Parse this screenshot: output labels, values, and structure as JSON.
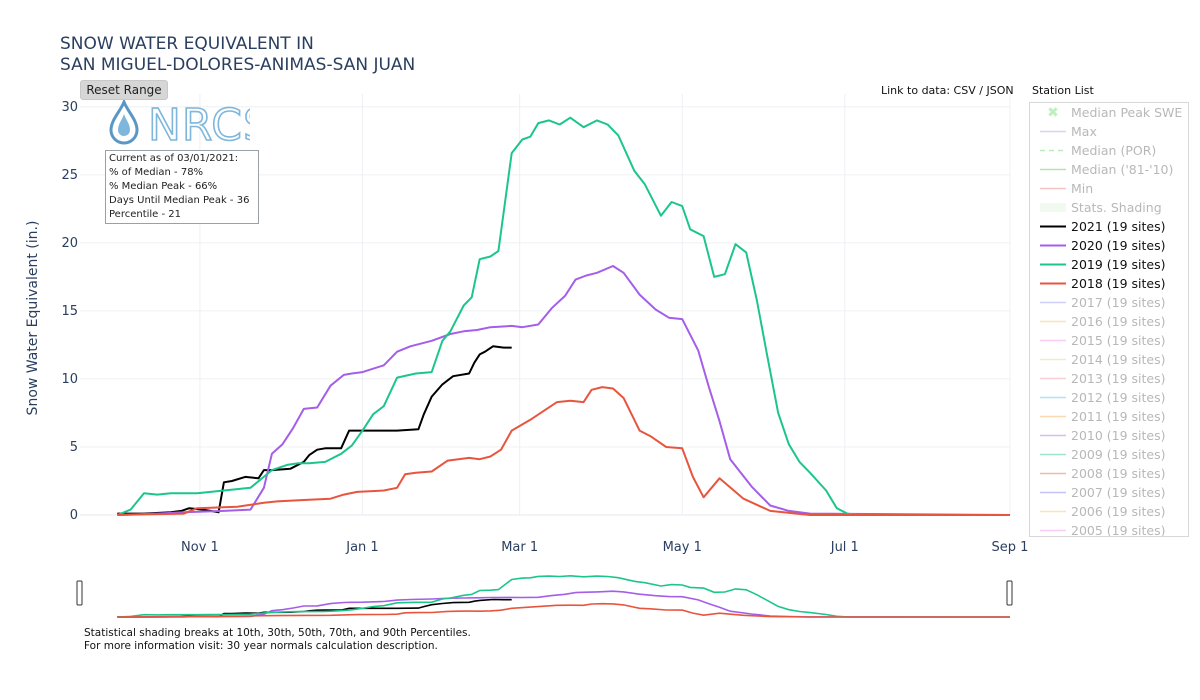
{
  "title_line1": "SNOW WATER EQUIVALENT IN",
  "title_line2": "SAN MIGUEL-DOLORES-ANIMAS-SAN JUAN",
  "reset_range_label": "Reset Range",
  "links": {
    "prefix": "Link to data:",
    "csv": "CSV",
    "sep": "/",
    "json": "JSON"
  },
  "station_list_label": "Station List",
  "logo_text": "NRCS",
  "info_box": {
    "line1": "Current as of 03/01/2021:",
    "line2": "% of Median - 78%",
    "line3": "% Median Peak - 66%",
    "line4": "Days Until Median Peak - 36",
    "line5": "Percentile - 21"
  },
  "footnote": {
    "line1": "Statistical shading breaks at 10th, 30th, 50th, 70th, and 90th Percentiles.",
    "line2_prefix": "For more information visit:",
    "line2_link": "30 year normals calculation description."
  },
  "legend": [
    {
      "label": "Median Peak SWE",
      "color": "#66dd66",
      "style": "marker",
      "active": false
    },
    {
      "label": "Max",
      "color": "#a98ee8",
      "style": "line",
      "active": false
    },
    {
      "label": "Median (POR)",
      "color": "#5ccf5c",
      "style": "dash",
      "active": false
    },
    {
      "label": "Median ('81-'10)",
      "color": "#4fbf4f",
      "style": "line",
      "active": false
    },
    {
      "label": "Min",
      "color": "#e57373",
      "style": "line",
      "active": false
    },
    {
      "label": "Stats. Shading",
      "color": "#dff2df",
      "style": "fill",
      "active": false
    },
    {
      "label": "2021 (19 sites)",
      "color": "#000000",
      "style": "line",
      "active": true
    },
    {
      "label": "2020 (19 sites)",
      "color": "#a45ee8",
      "style": "line",
      "active": true
    },
    {
      "label": "2019 (19 sites)",
      "color": "#1cc68b",
      "style": "line",
      "active": true
    },
    {
      "label": "2018 (19 sites)",
      "color": "#e8553e",
      "style": "line",
      "active": true
    },
    {
      "label": "2017 (19 sites)",
      "color": "#8c8ef0",
      "style": "line",
      "active": false
    },
    {
      "label": "2016 (19 sites)",
      "color": "#f5c04a",
      "style": "line",
      "active": false
    },
    {
      "label": "2015 (19 sites)",
      "color": "#f08ce8",
      "style": "line",
      "active": false
    },
    {
      "label": "2014 (19 sites)",
      "color": "#b8e08a",
      "style": "line",
      "active": false
    },
    {
      "label": "2013 (19 sites)",
      "color": "#f08e9c",
      "style": "line",
      "active": false
    },
    {
      "label": "2012 (19 sites)",
      "color": "#39c6f0",
      "style": "line",
      "active": false
    },
    {
      "label": "2011 (19 sites)",
      "color": "#f5a64a",
      "style": "line",
      "active": false
    },
    {
      "label": "2010 (19 sites)",
      "color": "#a45ee8",
      "style": "line",
      "active": false
    },
    {
      "label": "2009 (19 sites)",
      "color": "#1cc68b",
      "style": "line",
      "active": false
    },
    {
      "label": "2008 (19 sites)",
      "color": "#e8553e",
      "style": "line",
      "active": false
    },
    {
      "label": "2007 (19 sites)",
      "color": "#6f6ff0",
      "style": "line",
      "active": false
    },
    {
      "label": "2006 (19 sites)",
      "color": "#f5c04a",
      "style": "line",
      "active": false
    },
    {
      "label": "2005 (19 sites)",
      "color": "#f08ce8",
      "style": "line",
      "active": false
    }
  ],
  "chart_data": {
    "type": "line",
    "title": "SNOW WATER EQUIVALENT IN SAN MIGUEL-DOLORES-ANIMAS-SAN JUAN",
    "xlabel": "",
    "ylabel": "Snow Water Equivalent (in.)",
    "x_unit": "days since Oct 1",
    "xlim": [
      -14,
      335
    ],
    "ylim": [
      0,
      30.5
    ],
    "x_ticks": [
      {
        "value": 31,
        "label": "Nov  1"
      },
      {
        "value": 92,
        "label": "Jan  1"
      },
      {
        "value": 151,
        "label": "Mar  1"
      },
      {
        "value": 212,
        "label": "May  1"
      },
      {
        "value": 273,
        "label": "Jul  1"
      },
      {
        "value": 335,
        "label": "Sep  1"
      }
    ],
    "y_ticks": [
      0,
      5,
      10,
      15,
      20,
      25,
      30
    ],
    "grid": true,
    "legend_position": "right",
    "series": [
      {
        "name": "2021 (19 sites)",
        "color": "#000000",
        "width": 2,
        "x": [
          0,
          10,
          20,
          24,
          27,
          32,
          35,
          38,
          40,
          43,
          48,
          53,
          55,
          58,
          65,
          70,
          72,
          75,
          78,
          84,
          87,
          90,
          95,
          105,
          113,
          115,
          118,
          122,
          126,
          132,
          134,
          136,
          138,
          141,
          145,
          148
        ],
        "y": [
          0.1,
          0.1,
          0.2,
          0.3,
          0.5,
          0.4,
          0.3,
          0.2,
          2.4,
          2.5,
          2.8,
          2.7,
          3.3,
          3.3,
          3.4,
          3.9,
          4.4,
          4.8,
          4.9,
          4.9,
          6.2,
          6.2,
          6.2,
          6.2,
          6.3,
          7.4,
          8.7,
          9.6,
          10.2,
          10.4,
          11.2,
          11.8,
          12.0,
          12.4,
          12.3,
          12.3
        ]
      },
      {
        "name": "2020 (19 sites)",
        "color": "#a45ee8",
        "width": 2,
        "x": [
          0,
          15,
          25,
          40,
          50,
          55,
          58,
          62,
          66,
          70,
          75,
          80,
          85,
          88,
          92,
          100,
          105,
          110,
          118,
          125,
          130,
          135,
          140,
          148,
          152,
          158,
          163,
          168,
          172,
          176,
          180,
          186,
          190,
          196,
          202,
          207,
          212,
          218,
          222,
          226,
          230,
          238,
          245,
          252,
          260,
          335
        ],
        "y": [
          0.0,
          0.1,
          0.2,
          0.3,
          0.4,
          2.0,
          4.5,
          5.2,
          6.4,
          7.8,
          7.9,
          9.5,
          10.3,
          10.4,
          10.5,
          11.0,
          12.0,
          12.4,
          12.8,
          13.3,
          13.5,
          13.6,
          13.8,
          13.9,
          13.8,
          14.0,
          15.2,
          16.1,
          17.3,
          17.6,
          17.8,
          18.3,
          17.8,
          16.2,
          15.1,
          14.5,
          14.4,
          12.1,
          9.4,
          6.9,
          4.1,
          2.1,
          0.7,
          0.3,
          0.1,
          0.0
        ]
      },
      {
        "name": "2019 (19 sites)",
        "color": "#1cc68b",
        "width": 2,
        "x": [
          0,
          5,
          10,
          15,
          20,
          25,
          30,
          35,
          40,
          50,
          58,
          64,
          68,
          72,
          78,
          84,
          88,
          92,
          96,
          100,
          105,
          112,
          118,
          122,
          125,
          130,
          133,
          136,
          140,
          143,
          148,
          152,
          155,
          158,
          162,
          166,
          170,
          175,
          180,
          184,
          188,
          194,
          198,
          204,
          208,
          212,
          215,
          220,
          224,
          228,
          232,
          236,
          240,
          244,
          248,
          252,
          256,
          260,
          266,
          270,
          274,
          278,
          285,
          335
        ],
        "y": [
          0.0,
          0.4,
          1.6,
          1.5,
          1.6,
          1.6,
          1.6,
          1.7,
          1.8,
          2.0,
          3.3,
          3.7,
          3.8,
          3.8,
          3.9,
          4.5,
          5.1,
          6.2,
          7.4,
          8.0,
          10.1,
          10.4,
          10.5,
          12.8,
          13.5,
          15.4,
          16.0,
          18.8,
          19.0,
          19.4,
          26.6,
          27.6,
          27.8,
          28.8,
          29.0,
          28.7,
          29.2,
          28.5,
          29.0,
          28.7,
          27.9,
          25.3,
          24.3,
          22.0,
          23.0,
          22.7,
          21.0,
          20.5,
          17.5,
          17.7,
          19.9,
          19.3,
          15.8,
          11.6,
          7.5,
          5.2,
          3.9,
          3.1,
          1.8,
          0.5,
          0.1,
          0.0,
          0.0,
          0.0
        ]
      },
      {
        "name": "2018 (19 sites)",
        "color": "#e8553e",
        "width": 2,
        "x": [
          0,
          25,
          30,
          45,
          55,
          60,
          70,
          80,
          85,
          90,
          100,
          105,
          108,
          112,
          118,
          124,
          128,
          132,
          136,
          140,
          144,
          148,
          155,
          165,
          170,
          175,
          178,
          182,
          186,
          190,
          196,
          200,
          206,
          212,
          216,
          220,
          226,
          235,
          245,
          260,
          335
        ],
        "y": [
          0.0,
          0.1,
          0.5,
          0.6,
          0.9,
          1.0,
          1.1,
          1.2,
          1.5,
          1.7,
          1.8,
          2.0,
          3.0,
          3.1,
          3.2,
          4.0,
          4.1,
          4.2,
          4.1,
          4.3,
          4.8,
          6.2,
          7.0,
          8.3,
          8.4,
          8.3,
          9.2,
          9.4,
          9.3,
          8.6,
          6.2,
          5.8,
          5.0,
          4.9,
          2.8,
          1.3,
          2.7,
          1.2,
          0.3,
          0.0,
          0.0
        ]
      }
    ]
  }
}
